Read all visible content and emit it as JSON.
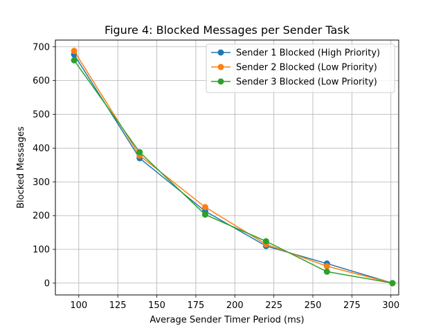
{
  "chart_data": {
    "type": "line",
    "title": "Figure 4: Blocked Messages per Sender Task",
    "xlabel": "Average Sender Timer Period (ms)",
    "ylabel": "Blocked Messages",
    "xlim": [
      85,
      305
    ],
    "ylim": [
      -35,
      720
    ],
    "xticks": [
      100,
      125,
      150,
      175,
      200,
      225,
      250,
      275,
      300
    ],
    "yticks": [
      0,
      100,
      200,
      300,
      400,
      500,
      600,
      700
    ],
    "grid": true,
    "legend_position": "top-right",
    "series": [
      {
        "name": "Sender 1 Blocked (High Priority)",
        "color": "#1f77b4",
        "points": [
          [
            97,
            677
          ],
          [
            139,
            370
          ],
          [
            181,
            213
          ],
          [
            220,
            110
          ],
          [
            259,
            58
          ],
          [
            301,
            0
          ]
        ]
      },
      {
        "name": "Sender 2 Blocked (Low Priority)",
        "color": "#ff7f0e",
        "points": [
          [
            97,
            688
          ],
          [
            139,
            378
          ],
          [
            181,
            225
          ],
          [
            220,
            115
          ],
          [
            259,
            50
          ],
          [
            301,
            0
          ]
        ]
      },
      {
        "name": "Sender 3 Blocked (Low Priority)",
        "color": "#2ca02c",
        "points": [
          [
            97,
            660
          ],
          [
            139,
            388
          ],
          [
            181,
            203
          ],
          [
            220,
            124
          ],
          [
            259,
            34
          ],
          [
            301,
            0
          ]
        ]
      }
    ]
  }
}
